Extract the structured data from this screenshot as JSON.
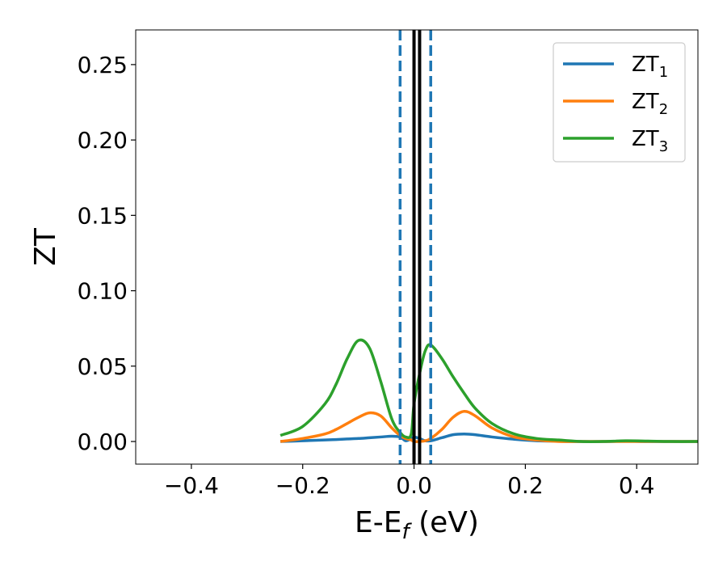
{
  "chart_data": {
    "type": "line",
    "title": "",
    "xlabel": "E-E",
    "xlabel_sub": "f",
    "xlabel_unit": " (eV)",
    "ylabel": "ZT",
    "xlim": [
      -0.5,
      0.51
    ],
    "ylim": [
      -0.015,
      0.273
    ],
    "xticks": [
      -0.4,
      -0.2,
      0.0,
      0.2,
      0.4
    ],
    "xtick_labels": [
      "−0.4",
      "−0.2",
      "0.0",
      "0.2",
      "0.4"
    ],
    "yticks": [
      0.0,
      0.05,
      0.1,
      0.15,
      0.2,
      0.25
    ],
    "ytick_labels": [
      "0.00",
      "0.05",
      "0.10",
      "0.15",
      "0.20",
      "0.25"
    ],
    "grid": false,
    "legend_position": "top-right",
    "vlines": [
      {
        "x": -0.025,
        "style": "dashed",
        "color": "#1f77b4"
      },
      {
        "x": 0.03,
        "style": "dashed",
        "color": "#1f77b4"
      },
      {
        "x": 0.0,
        "style": "solid",
        "color": "#000000"
      },
      {
        "x": 0.01,
        "style": "solid",
        "color": "#000000"
      }
    ],
    "x": [
      -0.24,
      -0.2,
      -0.16,
      -0.14,
      -0.12,
      -0.1,
      -0.08,
      -0.06,
      -0.04,
      -0.025,
      -0.015,
      -0.005,
      0.0,
      0.01,
      0.02,
      0.03,
      0.05,
      0.07,
      0.09,
      0.11,
      0.14,
      0.18,
      0.22,
      0.26,
      0.3,
      0.34,
      0.38,
      0.42,
      0.46,
      0.51
    ],
    "series": [
      {
        "name": "ZT",
        "name_sub": "1",
        "color": "#1f77b4",
        "values": [
          0.0,
          0.0005,
          0.001,
          0.0013,
          0.0017,
          0.002,
          0.0025,
          0.003,
          0.0035,
          0.003,
          0.0005,
          0.002,
          0.003,
          0.002,
          0.0005,
          0.0005,
          0.0025,
          0.0045,
          0.005,
          0.0045,
          0.003,
          0.0015,
          0.0005,
          0.0002,
          0.0,
          0.0,
          0.0002,
          0.0,
          0.0,
          0.0
        ]
      },
      {
        "name": "ZT",
        "name_sub": "2",
        "color": "#ff7f0e",
        "values": [
          0.0,
          0.002,
          0.005,
          0.008,
          0.012,
          0.016,
          0.019,
          0.017,
          0.009,
          0.004,
          0.002,
          0.001,
          0.0,
          0.0,
          0.0005,
          0.002,
          0.008,
          0.016,
          0.02,
          0.017,
          0.009,
          0.003,
          0.001,
          0.0,
          0.0,
          0.0,
          0.0,
          0.0,
          0.0,
          0.0
        ]
      },
      {
        "name": "ZT",
        "name_sub": "3",
        "color": "#2ca02c",
        "values": [
          0.004,
          0.01,
          0.025,
          0.038,
          0.055,
          0.067,
          0.062,
          0.04,
          0.015,
          0.006,
          0.003,
          0.005,
          0.025,
          0.045,
          0.06,
          0.064,
          0.055,
          0.043,
          0.032,
          0.022,
          0.012,
          0.005,
          0.002,
          0.001,
          0.0,
          0.0,
          0.0005,
          0.0003,
          0.0,
          0.0
        ]
      }
    ]
  }
}
